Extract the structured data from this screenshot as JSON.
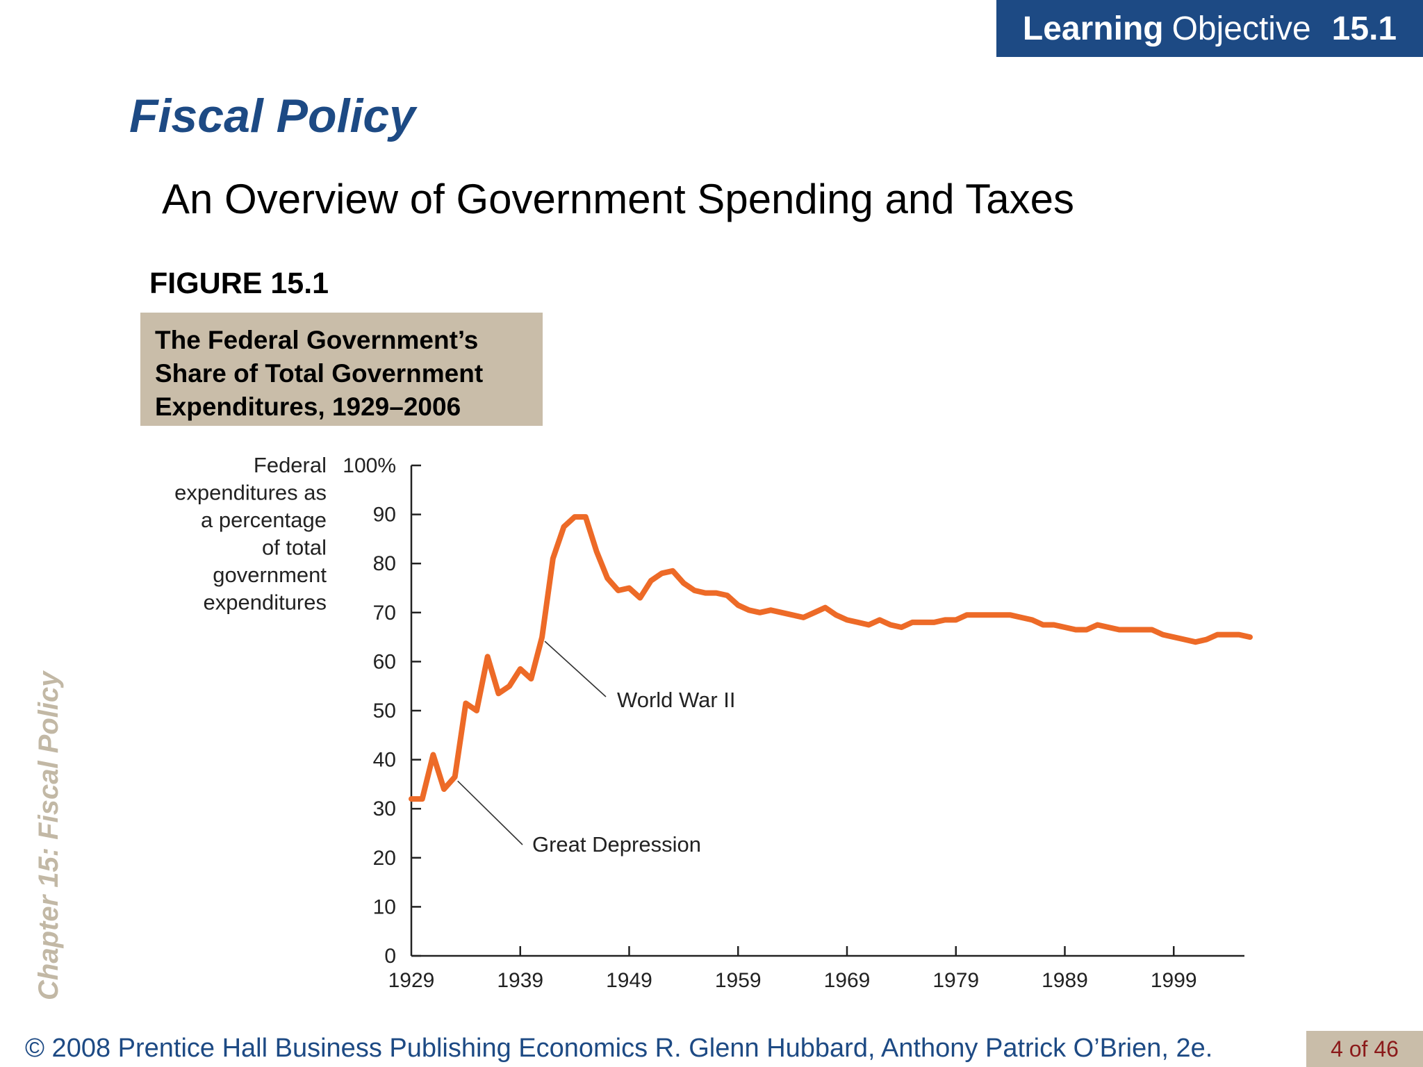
{
  "header": {
    "lo_bold": "Learning",
    "lo_text": "Objective",
    "lo_number": "15.1"
  },
  "slide": {
    "title": "Fiscal Policy",
    "subtitle": "An Overview of Government Spending and Taxes"
  },
  "figure": {
    "label": "FIGURE 15.1",
    "caption_lines": [
      "The Federal Government’s",
      "Share of Total Government",
      "Expenditures, 1929–2006"
    ]
  },
  "sidebar": {
    "chapter_label": "Chapter 15:  Fiscal Policy"
  },
  "footer": {
    "text": "© 2008 Prentice Hall Business Publishing   Economics  R. Glenn Hubbard, Anthony Patrick O’Brien, 2e.",
    "page": "4 of 46"
  },
  "colors": {
    "title_blue": "#1d4a84",
    "caption_bg": "#c9bda9",
    "line": "#ed6a27",
    "page_num_text": "#8b1a1a"
  },
  "chart_data": {
    "type": "line",
    "ylabel_lines": [
      "Federal",
      "expenditures as",
      "a percentage",
      "of total",
      "government",
      "expenditures"
    ],
    "xlabel": "",
    "xlim": [
      1929,
      2006
    ],
    "ylim": [
      0,
      100
    ],
    "x_ticks": [
      1929,
      1939,
      1949,
      1959,
      1969,
      1979,
      1989,
      1999
    ],
    "y_ticks": [
      {
        "value": 0,
        "label": "0"
      },
      {
        "value": 10,
        "label": "10"
      },
      {
        "value": 20,
        "label": "20"
      },
      {
        "value": 30,
        "label": "30"
      },
      {
        "value": 40,
        "label": "40"
      },
      {
        "value": 50,
        "label": "50"
      },
      {
        "value": 60,
        "label": "60"
      },
      {
        "value": 70,
        "label": "70"
      },
      {
        "value": 80,
        "label": "80"
      },
      {
        "value": 90,
        "label": "90"
      },
      {
        "value": 100,
        "label": "100%"
      }
    ],
    "series": [
      {
        "x": [
          1929,
          1930,
          1931,
          1932,
          1933,
          1934,
          1935,
          1936,
          1937,
          1938,
          1939,
          1940,
          1941,
          1942,
          1943,
          1944,
          1945,
          1946,
          1947,
          1948,
          1949,
          1950,
          1951,
          1952,
          1953,
          1954,
          1955,
          1956,
          1957,
          1958,
          1959,
          1960,
          1961,
          1962,
          1963,
          1964,
          1965,
          1966,
          1967,
          1968,
          1969,
          1970,
          1971,
          1972,
          1973,
          1974,
          1975,
          1976,
          1977,
          1978,
          1979,
          1980,
          1981,
          1982,
          1983,
          1984,
          1985,
          1986,
          1987,
          1988,
          1989,
          1990,
          1991,
          1992,
          1993,
          1994,
          1995,
          1996,
          1997,
          1998,
          1999,
          2000,
          2001,
          2002,
          2003,
          2004,
          2005,
          2006
        ],
        "values": [
          32,
          32,
          41,
          34,
          36.5,
          51.5,
          50,
          61,
          53.5,
          55,
          58.5,
          56.5,
          65,
          81,
          87.5,
          89.5,
          89.5,
          82.5,
          77,
          74.5,
          75,
          73,
          76.5,
          78,
          78.5,
          76,
          74.5,
          74,
          74,
          73.5,
          71.5,
          70.5,
          70,
          70.5,
          70,
          69.5,
          69,
          70,
          71,
          69.5,
          68.5,
          68,
          67.5,
          68.5,
          67.5,
          67,
          68,
          68,
          68,
          68.5,
          68.5,
          69.5,
          69.5,
          69.5,
          69.5,
          69.5,
          69,
          68.5,
          67.5,
          67.5,
          67,
          66.5,
          66.5,
          67.5,
          67,
          66.5,
          66.5,
          66.5,
          66.5,
          65.5,
          65,
          64.5,
          64,
          64.5,
          65.5,
          65.5,
          65.5,
          65
        ]
      }
    ],
    "annotations": [
      {
        "text": "World War II",
        "x": 1941,
        "y": 65
      },
      {
        "text": "Great Depression",
        "x": 1933,
        "y": 36.5
      }
    ]
  }
}
